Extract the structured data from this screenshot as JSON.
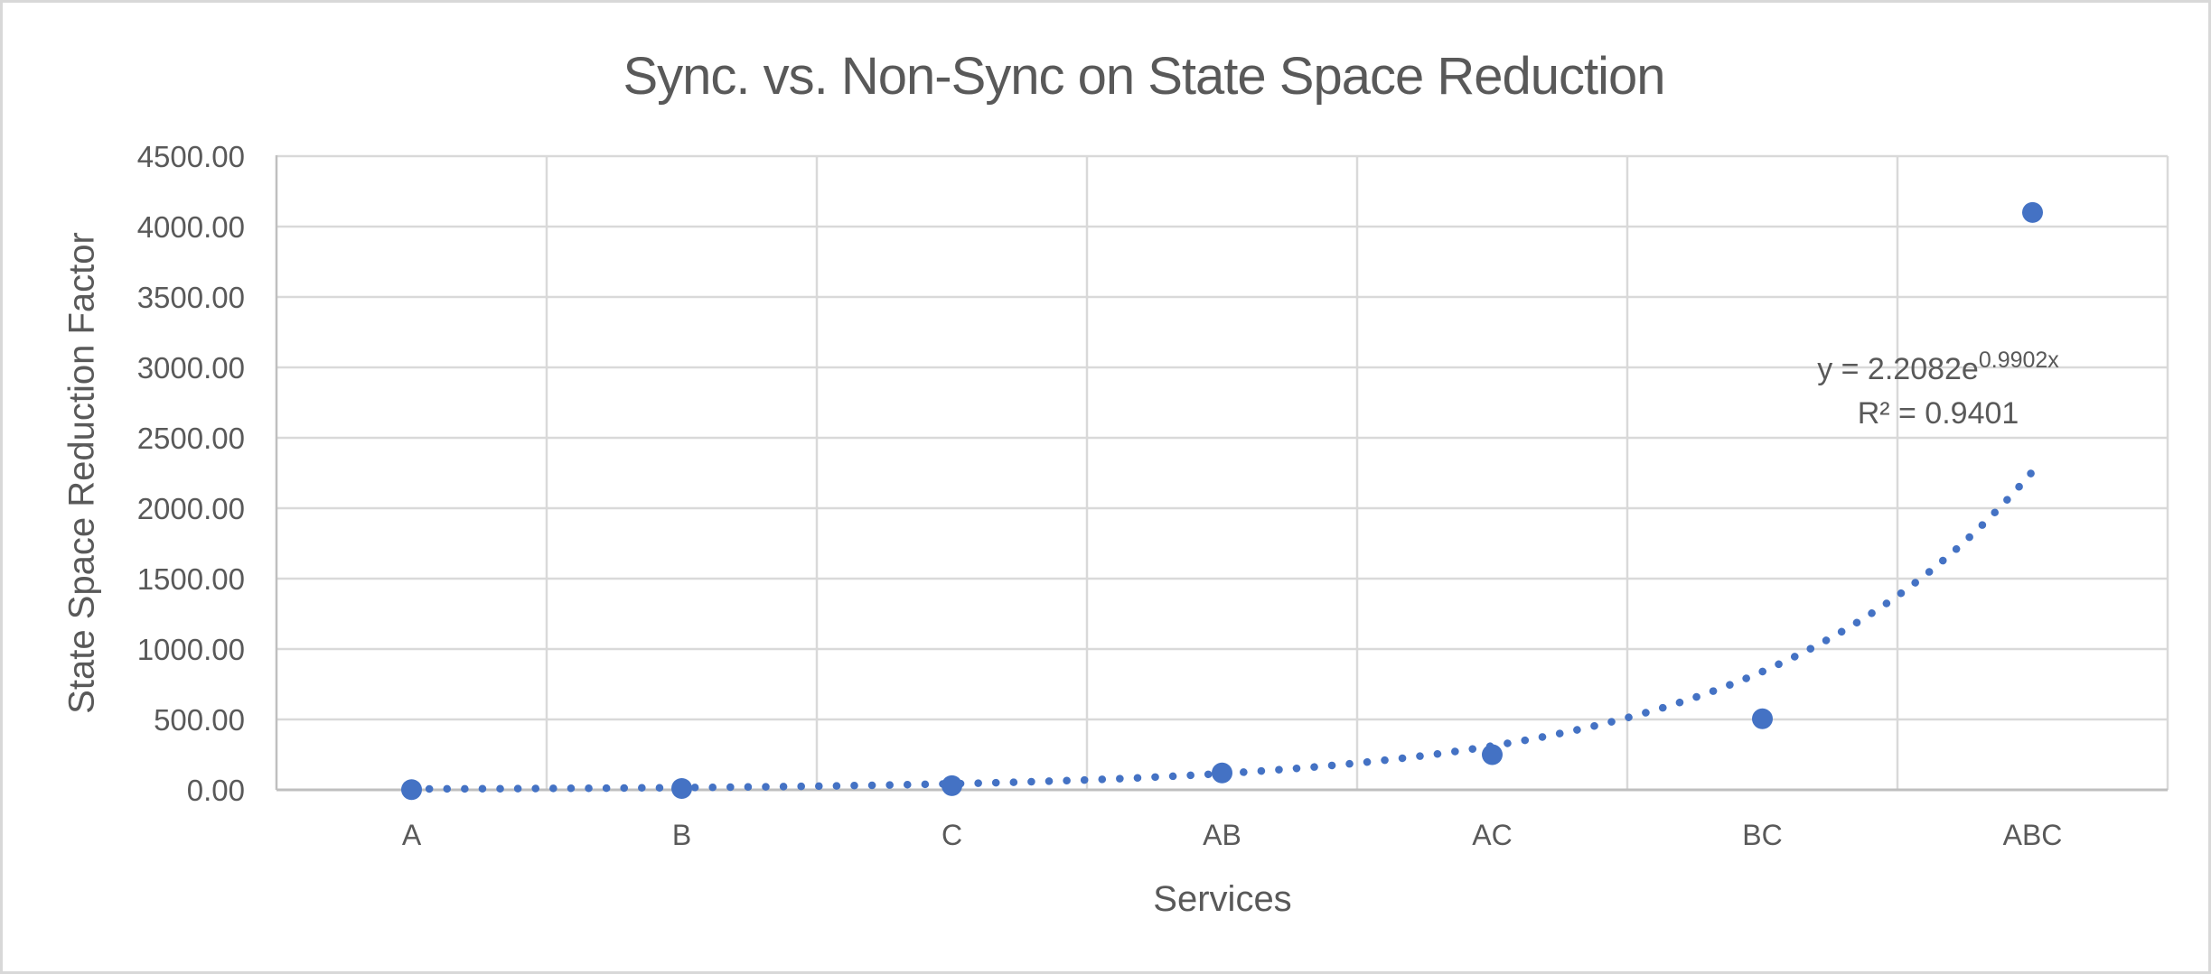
{
  "colors": {
    "accent": "#4472C4",
    "gridline": "#D9D9D9",
    "axis_line": "#BFBFBF",
    "text": "#595959",
    "frame_border": "#D8D8D8",
    "background": "#FFFFFF"
  },
  "chart_data": {
    "type": "scatter",
    "title": "Sync. vs. Non-Sync on State Space Reduction",
    "xlabel": "Services",
    "ylabel": "State Space Reduction Factor",
    "categories": [
      "A",
      "B",
      "C",
      "AB",
      "AC",
      "BC",
      "ABC"
    ],
    "values": [
      2,
      10,
      30,
      120,
      250,
      505,
      4100
    ],
    "ylim": [
      0,
      4500
    ],
    "ytick_step": 500,
    "ytick_labels": [
      "0.00",
      "500.00",
      "1000.00",
      "1500.00",
      "2000.00",
      "2500.00",
      "3000.00",
      "3500.00",
      "4000.00",
      "4500.00"
    ],
    "grid": true,
    "legend": "none",
    "marker_color": "#4472C4",
    "trendline": {
      "type": "exponential",
      "a": 2.2082,
      "b": 0.9902,
      "style": "dotted",
      "color": "#4472C4",
      "equation_base": "y = 2.2082e",
      "equation_exponent": "0.9902x",
      "r_squared_label": "R² = 0.9401",
      "r_squared": 0.9401
    }
  }
}
